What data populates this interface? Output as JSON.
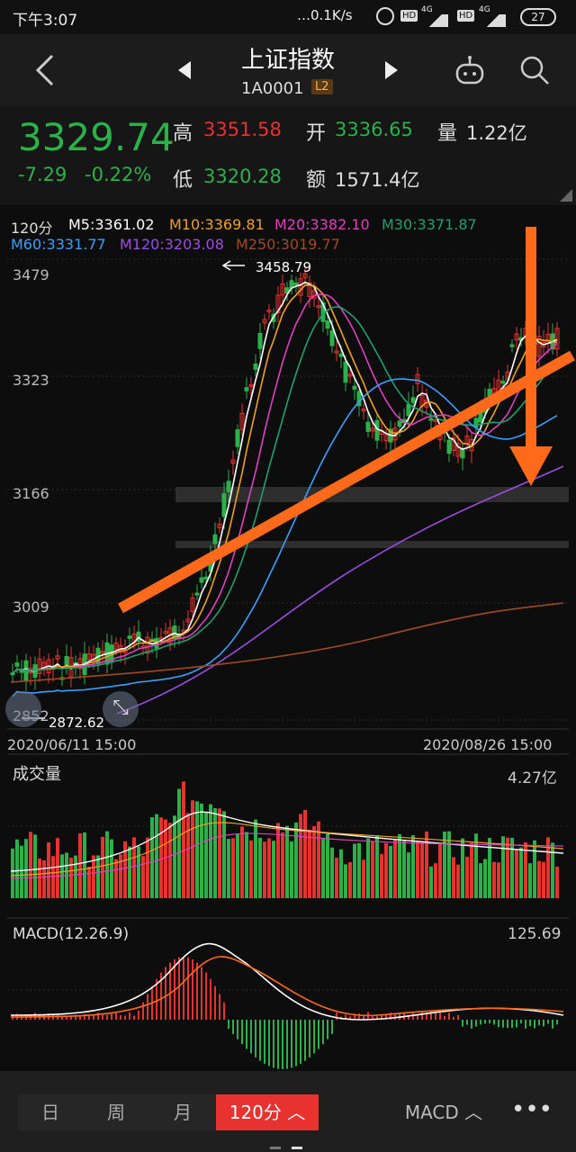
{
  "status": {
    "time": "下午3:07",
    "net": "…0.1K/s",
    "hd1": "HD",
    "sig1": "4G",
    "hd2": "HD",
    "sig2": "4G",
    "battery": "27"
  },
  "header": {
    "title": "上证指数",
    "code": "1A0001",
    "badge": "L2"
  },
  "quote": {
    "price": "3329.74",
    "change": "-7.29",
    "change_pct": "-0.22%",
    "high_label": "高",
    "high": "3351.58",
    "low_label": "低",
    "low": "3320.28",
    "open_label": "开",
    "open": "3336.65",
    "amt_label": "额",
    "amount": "1571.4亿",
    "vol_label": "量",
    "volume": "1.22亿"
  },
  "ma": {
    "period": "120分",
    "m5": "M5:3361.02",
    "m10": "M10:3369.81",
    "m20": "M20:3382.10",
    "m30": "M30:3371.87",
    "m60": "M60:3331.77",
    "m120": "M120:3203.08",
    "m250": "M250:3019.77"
  },
  "colors": {
    "up": "#e8322f",
    "down": "#2bb14a",
    "m5": "#ffffff",
    "m10": "#f0a020",
    "m20": "#e040c0",
    "m30": "#20a070",
    "m60": "#3aa0ff",
    "m120": "#9c4de0",
    "m250": "#a04a20",
    "accent": "#ff6a1a"
  },
  "chart_data": {
    "type": "candlestick",
    "y_ticks": [
      "3479",
      "3323",
      "3166",
      "3009",
      "2852"
    ],
    "high_marker": "3458.79",
    "low_marker": "2872.62",
    "x_start": "2020/06/11 15:00",
    "x_end": "2020/08/26 15:00"
  },
  "volume": {
    "title": "成交量",
    "max": "4.27亿"
  },
  "macd": {
    "title": "MACD(12.26.9)",
    "max": "125.69"
  },
  "bottom": {
    "tabs": [
      "日",
      "周",
      "月",
      "120分"
    ],
    "active": "120分",
    "indicator": "MACD"
  }
}
